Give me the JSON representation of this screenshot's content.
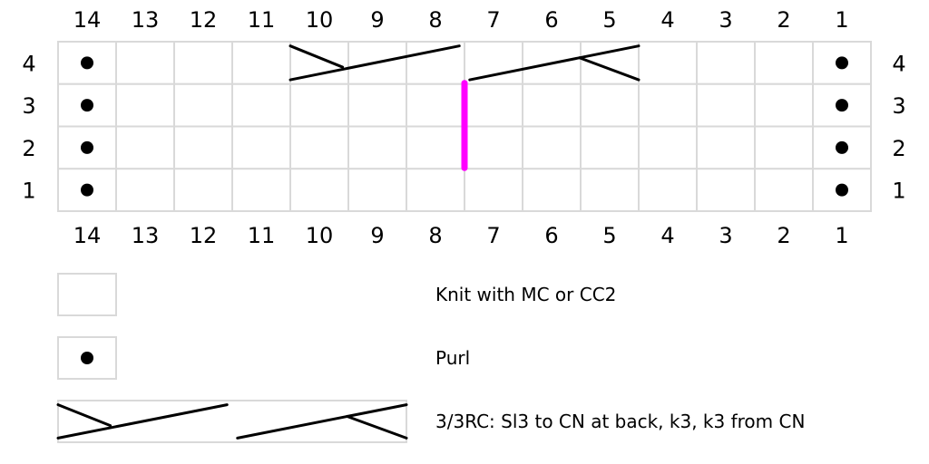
{
  "chart": {
    "columns": [
      "14",
      "13",
      "12",
      "11",
      "10",
      "9",
      "8",
      "7",
      "6",
      "5",
      "4",
      "3",
      "2",
      "1"
    ],
    "rows": [
      "4",
      "3",
      "2",
      "1"
    ],
    "purl_columns": [
      "14",
      "1"
    ],
    "cable": {
      "rows": [
        "4"
      ],
      "columns": [
        "10",
        "9",
        "8",
        "7",
        "6",
        "5"
      ]
    },
    "marker": {
      "color": "#ff00ff",
      "between_columns": [
        "8",
        "7"
      ],
      "rows": [
        "3",
        "2"
      ]
    }
  },
  "legend": [
    {
      "symbol": "blank",
      "label": "Knit with MC or CC2"
    },
    {
      "symbol": "purl-dot",
      "label": "Purl"
    },
    {
      "symbol": "cable-3-3-right",
      "label": "3/3RC: Sl3 to CN at back, k3, k3 from CN"
    }
  ],
  "colors": {
    "grid": "#d9d9d9",
    "symbol": "#000000",
    "marker": "#ff00ff"
  }
}
